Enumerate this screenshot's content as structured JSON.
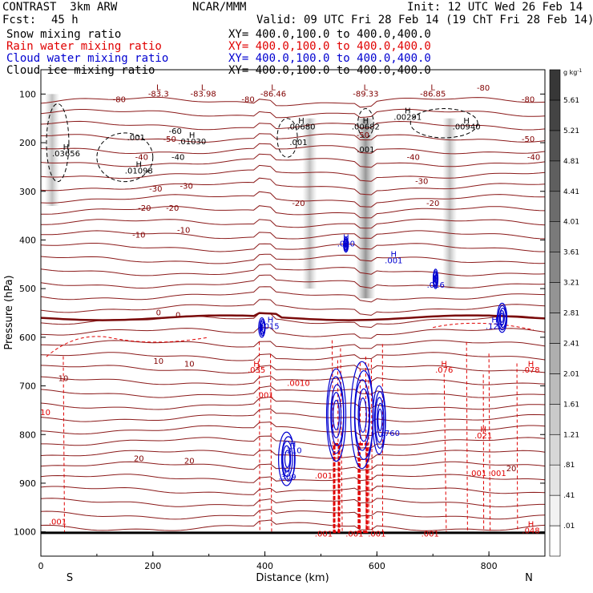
{
  "header": {
    "model": "CONTRAST  3km ARW",
    "org": "NCAR/MMM",
    "init": "Init: 12 UTC Wed 26 Feb 14",
    "fcst_label": "Fcst:",
    "fcst_value": "45 h",
    "valid": "Valid: 09 UTC Fri 28 Feb 14 (19 ChT Fri 28 Feb 14)"
  },
  "fields": [
    {
      "name": "Snow mixing ratio",
      "xy": "XY= 400.0,100.0 to 400.0,400.0",
      "color": "#000000"
    },
    {
      "name": "Rain water mixing ratio",
      "xy": "XY= 400.0,100.0 to 400.0,400.0",
      "color": "#e00000"
    },
    {
      "name": "Cloud water mixing ratio",
      "xy": "XY= 400.0,100.0 to 400.0,400.0",
      "color": "#0000d0"
    },
    {
      "name": "Cloud ice mixing ratio",
      "xy": "XY= 400.0,100.0 to 400.0,400.0",
      "color": "#000000"
    }
  ],
  "chart_data": {
    "type": "cross-section contour",
    "xlabel": "Distance (km)",
    "ylabel": "Pressure (hPa)",
    "x_ticks": [
      0,
      200,
      400,
      600,
      800
    ],
    "y_ticks": [
      100,
      200,
      300,
      400,
      500,
      600,
      700,
      800,
      900,
      1000
    ],
    "xlim": [
      0,
      900
    ],
    "ylim": [
      1050,
      50
    ],
    "x_end_labels": {
      "left": "S",
      "right": "N"
    },
    "colorbar": {
      "unit": "g kg",
      "unit_exp": "-1",
      "levels": [
        ".01",
        ".41",
        ".81",
        "1.21",
        "1.61",
        "2.01",
        "2.41",
        "2.81",
        "3.21",
        "3.61",
        "4.01",
        "4.41",
        "4.81",
        "5.21",
        "5.61"
      ]
    },
    "temperature_isotherms_C": [
      {
        "value": -80,
        "p": 130
      },
      {
        "value": -80,
        "p": 160
      },
      {
        "value": -60,
        "p": 180
      },
      {
        "value": -50,
        "p": 200
      },
      {
        "value": -40,
        "p": 230
      },
      {
        "value": -30,
        "p": 270
      },
      {
        "value": -20,
        "p": 315
      },
      {
        "value": -10,
        "p": 365
      },
      {
        "value": 0,
        "p": 560
      },
      {
        "value": 10,
        "p": 705
      },
      {
        "value": 20,
        "p": 860
      }
    ],
    "contour_labels": [
      {
        "text": "-80",
        "x": 140,
        "p": 117,
        "color": "#800000"
      },
      {
        "text": "-80",
        "x": 370,
        "p": 117,
        "color": "#800000"
      },
      {
        "text": "-80",
        "x": 790,
        "p": 93,
        "color": "#800000"
      },
      {
        "text": "-80",
        "x": 870,
        "p": 117,
        "color": "#800000"
      },
      {
        "text": "-60",
        "x": 240,
        "p": 182,
        "color": "#000000"
      },
      {
        "text": "-50",
        "x": 230,
        "p": 198,
        "color": "#800000"
      },
      {
        "text": "-50",
        "x": 575,
        "p": 190,
        "color": "#800000"
      },
      {
        "text": "-50",
        "x": 870,
        "p": 198,
        "color": "#800000"
      },
      {
        "text": "-40",
        "x": 180,
        "p": 235,
        "color": "#800000"
      },
      {
        "text": "-40",
        "x": 245,
        "p": 235,
        "color": "#000000"
      },
      {
        "text": "-40",
        "x": 665,
        "p": 235,
        "color": "#800000"
      },
      {
        "text": "-40",
        "x": 880,
        "p": 235,
        "color": "#800000"
      },
      {
        "text": "-30",
        "x": 205,
        "p": 300,
        "color": "#800000"
      },
      {
        "text": "-30",
        "x": 260,
        "p": 295,
        "color": "#800000"
      },
      {
        "text": "-30",
        "x": 680,
        "p": 285,
        "color": "#800000"
      },
      {
        "text": "-20",
        "x": 185,
        "p": 340,
        "color": "#800000"
      },
      {
        "text": "-20",
        "x": 235,
        "p": 340,
        "color": "#800000"
      },
      {
        "text": "-20",
        "x": 460,
        "p": 330,
        "color": "#800000"
      },
      {
        "text": "-20",
        "x": 700,
        "p": 330,
        "color": "#800000"
      },
      {
        "text": "-10",
        "x": 175,
        "p": 395,
        "color": "#800000"
      },
      {
        "text": "-10",
        "x": 255,
        "p": 385,
        "color": "#800000"
      },
      {
        "text": "0",
        "x": 210,
        "p": 555,
        "color": "#800000"
      },
      {
        "text": "0",
        "x": 245,
        "p": 560,
        "color": "#800000"
      },
      {
        "text": "10",
        "x": 40,
        "p": 690,
        "color": "#800000"
      },
      {
        "text": "10",
        "x": 210,
        "p": 655,
        "color": "#800000"
      },
      {
        "text": "10",
        "x": 265,
        "p": 660,
        "color": "#800000"
      },
      {
        "text": "10",
        "x": 8,
        "p": 760,
        "color": "#e00000"
      },
      {
        "text": "20",
        "x": 175,
        "p": 855,
        "color": "#800000"
      },
      {
        "text": "20",
        "x": 265,
        "p": 860,
        "color": "#800000"
      },
      {
        "text": "20",
        "x": 840,
        "p": 875,
        "color": "#800000"
      }
    ],
    "extrema": [
      {
        "kind": "L",
        "value": "-83.3",
        "x": 210,
        "p": 102,
        "color": "#800000"
      },
      {
        "kind": "L",
        "value": "-83.98",
        "x": 290,
        "p": 102,
        "color": "#800000"
      },
      {
        "kind": "L",
        "value": "-86.46",
        "x": 415,
        "p": 102,
        "color": "#800000"
      },
      {
        "kind": "L",
        "value": "-89.33",
        "x": 580,
        "p": 102,
        "color": "#800000"
      },
      {
        "kind": "L",
        "value": "-86.85",
        "x": 700,
        "p": 102,
        "color": "#800000"
      },
      {
        "kind": "H",
        "value": ".00680",
        "x": 465,
        "p": 170,
        "color": "#000000"
      },
      {
        "kind": "H",
        "value": ".00682",
        "x": 580,
        "p": 170,
        "color": "#000000"
      },
      {
        "kind": "H",
        "value": ".00291",
        "x": 655,
        "p": 150,
        "color": "#000000"
      },
      {
        "kind": "H",
        "value": ".00940",
        "x": 760,
        "p": 170,
        "color": "#000000"
      },
      {
        "kind": "H",
        "value": ".03656",
        "x": 45,
        "p": 225,
        "color": "#000000"
      },
      {
        "kind": "H",
        "value": ".01030",
        "x": 270,
        "p": 200,
        "color": "#000000"
      },
      {
        "kind": "H",
        "value": ".01098",
        "x": 175,
        "p": 260,
        "color": "#000000"
      },
      {
        "kind": "H",
        "value": ".020",
        "x": 545,
        "p": 410,
        "color": "#0000d0"
      },
      {
        "kind": "H",
        "value": ".001",
        "x": 630,
        "p": 445,
        "color": "#0000d0"
      },
      {
        "kind": "H",
        "value": ".016",
        "x": 705,
        "p": 495,
        "color": "#0000d0"
      },
      {
        "kind": "H",
        "value": ".015",
        "x": 410,
        "p": 580,
        "color": "#0000d0"
      },
      {
        "kind": "H",
        "value": ".122",
        "x": 810,
        "p": 580,
        "color": "#0000d0"
      },
      {
        "kind": "H",
        "value": ".035",
        "x": 385,
        "p": 670,
        "color": "#e00000"
      },
      {
        "kind": "H",
        "value": ".076",
        "x": 720,
        "p": 670,
        "color": "#e00000"
      },
      {
        "kind": "H",
        "value": ".078",
        "x": 875,
        "p": 670,
        "color": "#e00000"
      },
      {
        "kind": "H",
        "value": ".310",
        "x": 450,
        "p": 835,
        "color": "#0000d0"
      },
      {
        "kind": "H",
        "value": ".309",
        "x": 440,
        "p": 890,
        "color": "#0000d0"
      },
      {
        "kind": "H",
        "value": ".021",
        "x": 790,
        "p": 805,
        "color": "#e00000"
      },
      {
        "kind": "H",
        "value": ".048",
        "x": 875,
        "p": 1000,
        "color": "#e00000"
      },
      {
        "kind": "",
        "value": ".760",
        "x": 625,
        "p": 800,
        "color": "#0000d0"
      }
    ],
    "rain_labels": [
      {
        "text": ".001",
        "x": 30,
        "p": 985
      },
      {
        "text": ".001",
        "x": 400,
        "p": 725
      },
      {
        "text": ".0010",
        "x": 460,
        "p": 700
      },
      {
        "text": ".001",
        "x": 505,
        "p": 890
      },
      {
        "text": ".001",
        "x": 505,
        "p": 1010
      },
      {
        "text": ".001",
        "x": 560,
        "p": 1010
      },
      {
        "text": ".001",
        "x": 695,
        "p": 1010
      },
      {
        "text": ".001",
        "x": 780,
        "p": 885
      },
      {
        "text": ".001",
        "x": 815,
        "p": 885
      },
      {
        "text": ".001",
        "x": 600,
        "p": 1010
      }
    ],
    "snow_labels": [
      {
        "text": ".001",
        "x": 170,
        "p": 195
      },
      {
        "text": ".001",
        "x": 460,
        "p": 205
      },
      {
        "text": ".001",
        "x": 580,
        "p": 220
      }
    ],
    "shaded_columns_km": [
      20,
      480,
      580,
      730
    ]
  }
}
